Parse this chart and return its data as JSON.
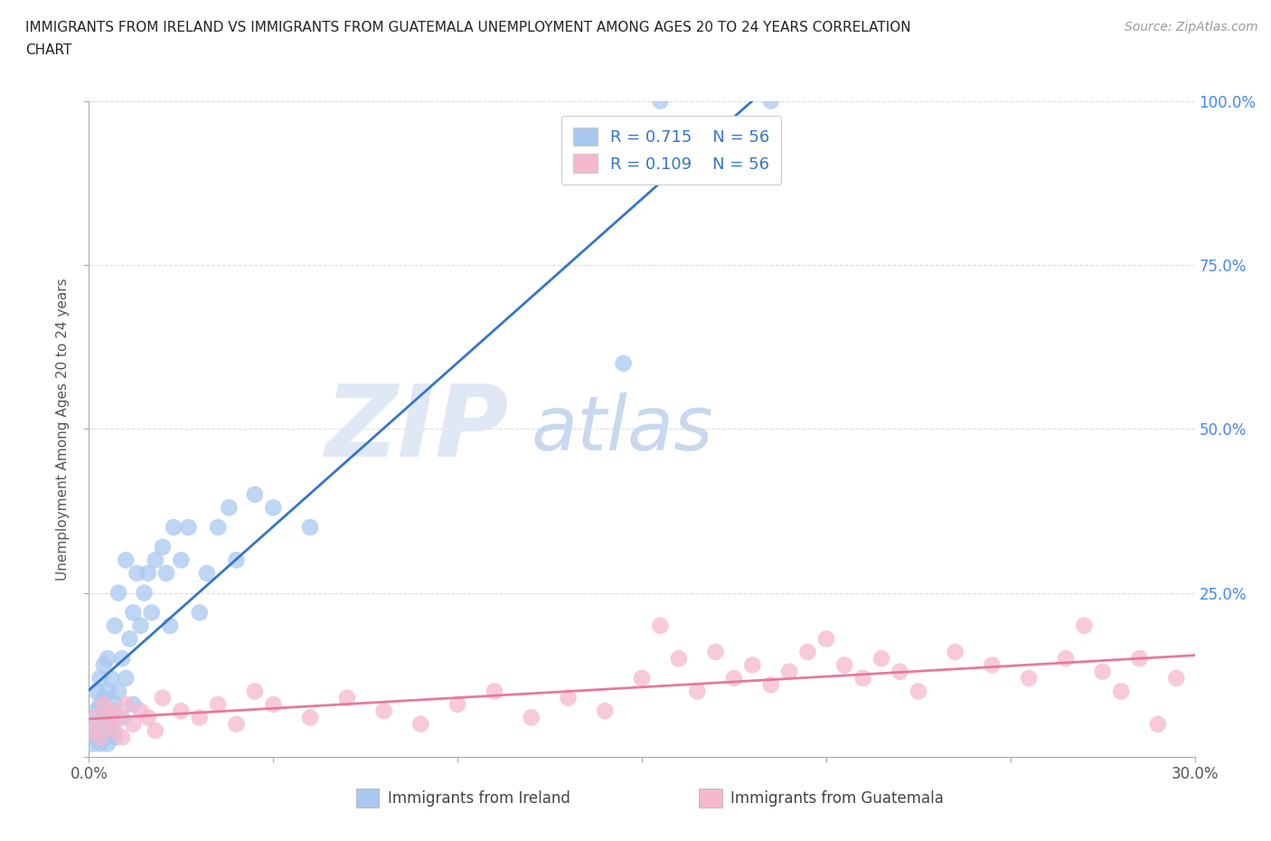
{
  "title_line1": "IMMIGRANTS FROM IRELAND VS IMMIGRANTS FROM GUATEMALA UNEMPLOYMENT AMONG AGES 20 TO 24 YEARS CORRELATION",
  "title_line2": "CHART",
  "source": "Source: ZipAtlas.com",
  "ylabel": "Unemployment Among Ages 20 to 24 years",
  "xlim": [
    0.0,
    0.3
  ],
  "ylim": [
    0.0,
    1.0
  ],
  "xticks": [
    0.0,
    0.05,
    0.1,
    0.15,
    0.2,
    0.25,
    0.3
  ],
  "yticks": [
    0.0,
    0.25,
    0.5,
    0.75,
    1.0
  ],
  "ireland_R": 0.715,
  "ireland_N": 56,
  "guatemala_R": 0.109,
  "guatemala_N": 56,
  "ireland_color": "#a8c8f0",
  "guatemala_color": "#f5b8cf",
  "ireland_line_color": "#3575c8",
  "guatemala_line_color": "#e8789a",
  "stat_text_color": "#3575c8",
  "background_color": "#ffffff",
  "grid_color": "#dddddd",
  "ireland_x": [
    0.001,
    0.001,
    0.002,
    0.002,
    0.002,
    0.003,
    0.003,
    0.003,
    0.003,
    0.004,
    0.004,
    0.004,
    0.004,
    0.005,
    0.005,
    0.005,
    0.005,
    0.006,
    0.006,
    0.006,
    0.007,
    0.007,
    0.007,
    0.008,
    0.008,
    0.009,
    0.009,
    0.01,
    0.01,
    0.011,
    0.012,
    0.012,
    0.013,
    0.014,
    0.015,
    0.016,
    0.017,
    0.018,
    0.02,
    0.021,
    0.022,
    0.023,
    0.025,
    0.027,
    0.03,
    0.032,
    0.035,
    0.038,
    0.04,
    0.045,
    0.05,
    0.06,
    0.145,
    0.155,
    0.175,
    0.185
  ],
  "ireland_y": [
    0.02,
    0.05,
    0.03,
    0.07,
    0.1,
    0.04,
    0.08,
    0.12,
    0.02,
    0.06,
    0.09,
    0.14,
    0.03,
    0.05,
    0.1,
    0.15,
    0.02,
    0.07,
    0.12,
    0.04,
    0.08,
    0.2,
    0.03,
    0.1,
    0.25,
    0.06,
    0.15,
    0.12,
    0.3,
    0.18,
    0.22,
    0.08,
    0.28,
    0.2,
    0.25,
    0.28,
    0.22,
    0.3,
    0.32,
    0.28,
    0.2,
    0.35,
    0.3,
    0.35,
    0.22,
    0.28,
    0.35,
    0.38,
    0.3,
    0.4,
    0.38,
    0.35,
    0.6,
    1.0,
    0.95,
    1.0
  ],
  "guatemala_x": [
    0.001,
    0.002,
    0.003,
    0.004,
    0.005,
    0.006,
    0.007,
    0.008,
    0.009,
    0.01,
    0.012,
    0.014,
    0.016,
    0.018,
    0.02,
    0.025,
    0.03,
    0.035,
    0.04,
    0.045,
    0.05,
    0.06,
    0.07,
    0.08,
    0.09,
    0.1,
    0.11,
    0.12,
    0.13,
    0.14,
    0.15,
    0.155,
    0.16,
    0.165,
    0.17,
    0.175,
    0.18,
    0.185,
    0.19,
    0.195,
    0.2,
    0.205,
    0.21,
    0.215,
    0.22,
    0.225,
    0.235,
    0.245,
    0.255,
    0.265,
    0.27,
    0.275,
    0.28,
    0.285,
    0.29,
    0.295
  ],
  "guatemala_y": [
    0.04,
    0.06,
    0.03,
    0.08,
    0.05,
    0.07,
    0.04,
    0.06,
    0.03,
    0.08,
    0.05,
    0.07,
    0.06,
    0.04,
    0.09,
    0.07,
    0.06,
    0.08,
    0.05,
    0.1,
    0.08,
    0.06,
    0.09,
    0.07,
    0.05,
    0.08,
    0.1,
    0.06,
    0.09,
    0.07,
    0.12,
    0.2,
    0.15,
    0.1,
    0.16,
    0.12,
    0.14,
    0.11,
    0.13,
    0.16,
    0.18,
    0.14,
    0.12,
    0.15,
    0.13,
    0.1,
    0.16,
    0.14,
    0.12,
    0.15,
    0.2,
    0.13,
    0.1,
    0.15,
    0.05,
    0.12
  ]
}
